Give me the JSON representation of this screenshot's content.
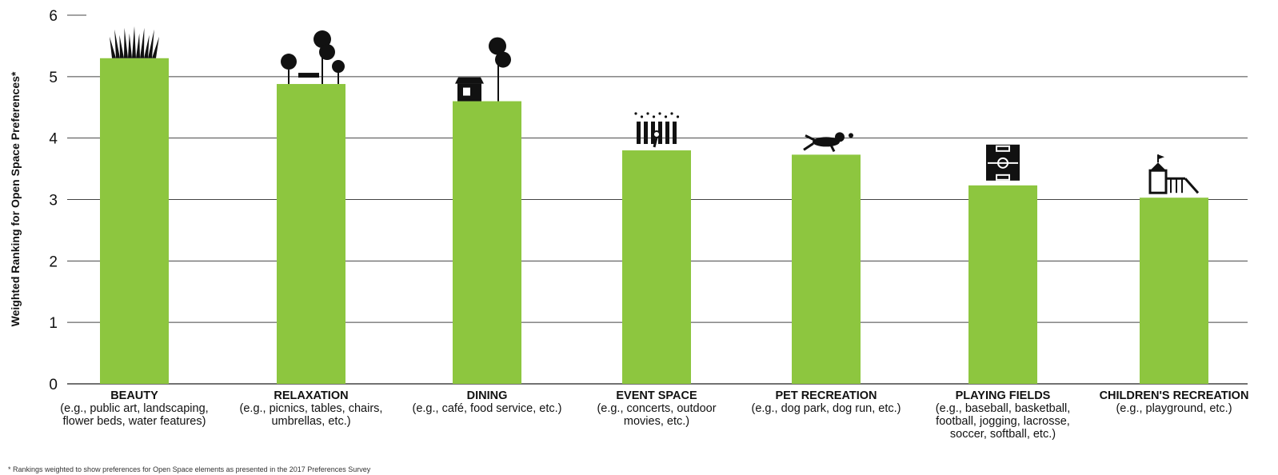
{
  "chart_data": {
    "type": "bar",
    "ylabel": "Weighted Ranking for Open Space Preferences*",
    "ylim": [
      0,
      6
    ],
    "yticks": [
      0,
      1,
      2,
      3,
      4,
      5,
      6
    ],
    "grid": true,
    "bar_color": "#8dc63f",
    "categories": [
      {
        "name": "BEAUTY",
        "example": "(e.g., public art, landscaping, flower beds, water features)",
        "icon": "grass-icon"
      },
      {
        "name": "RELAXATION",
        "example": "(e.g., picnics, tables, chairs, umbrellas, etc.)",
        "icon": "trees-bench-icon"
      },
      {
        "name": "DINING",
        "example": "(e.g., café, food service, etc.)",
        "icon": "cafe-icon"
      },
      {
        "name": "EVENT SPACE",
        "example": "(e.g., concerts, outdoor movies, etc.)",
        "icon": "performer-icon"
      },
      {
        "name": "PET RECREATION",
        "example": "(e.g., dog park, dog run, etc.)",
        "icon": "dog-icon"
      },
      {
        "name": "PLAYING FIELDS",
        "example": "(e.g., baseball, basketball, football, jogging, lacrosse, soccer, softball, etc.)",
        "icon": "field-icon"
      },
      {
        "name": "CHILDREN'S RECREATION",
        "example": "(e.g., playground, etc.)",
        "icon": "playground-icon"
      }
    ],
    "values": [
      5.3,
      4.88,
      4.6,
      3.8,
      3.73,
      3.23,
      3.03
    ]
  },
  "footnote": "* Rankings weighted to show preferences for Open Space elements as presented in the 2017 Preferences Survey"
}
